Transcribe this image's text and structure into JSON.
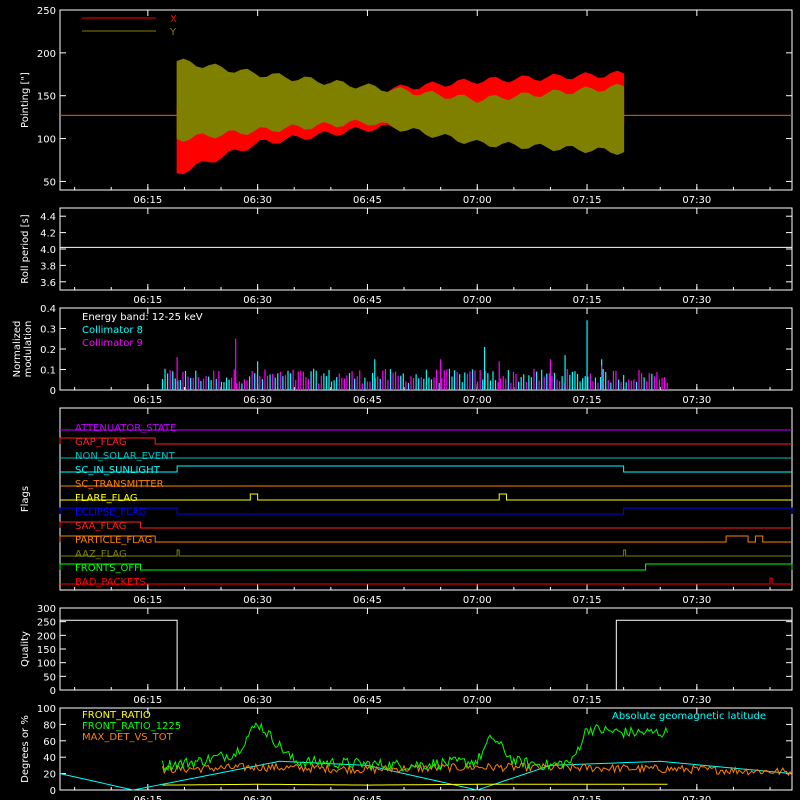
{
  "time_ticks": [
    "06:15",
    "06:30",
    "06:45",
    "07:00",
    "07:15",
    "07:30"
  ],
  "chart_data": [
    {
      "type": "line",
      "ylabel": "Pointing [\"]",
      "ylim": [
        40,
        250
      ],
      "yticks": [
        "50",
        "100",
        "150",
        "200",
        "250"
      ],
      "x_range": [
        "06:03",
        "07:43"
      ],
      "legend": {
        "placement": "top-left"
      },
      "series": [
        {
          "name": "X",
          "color": "#ff0000",
          "flat_level": 127,
          "oscillation_start": "06:19",
          "oscillation_end": "07:20",
          "envelope": {
            "x": [
              "06:19",
              "06:30",
              "06:45",
              "07:00",
              "07:20"
            ],
            "upper": [
              138,
              135,
              155,
              167,
              175
            ],
            "lower": [
              60,
              95,
              112,
              120,
              118
            ]
          }
        },
        {
          "name": "Y",
          "color": "#808000",
          "flat_level": 127,
          "oscillation_start": "06:19",
          "oscillation_end": "07:20",
          "envelope": {
            "x": [
              "06:19",
              "06:30",
              "06:45",
              "07:00",
              "07:20"
            ],
            "upper": [
              190,
              175,
              160,
              145,
              160
            ],
            "lower": [
              100,
              110,
              120,
              95,
              85
            ]
          }
        }
      ]
    },
    {
      "type": "line",
      "ylabel": "Roll period [s]",
      "ylim": [
        3.5,
        4.5
      ],
      "yticks": [
        "3.6",
        "3.8",
        "4.0",
        "4.2",
        "4.4"
      ],
      "series": [
        {
          "name": "",
          "color": "#ffffff",
          "x": [
            "06:03",
            "07:43"
          ],
          "values": [
            4.02,
            4.02
          ]
        }
      ]
    },
    {
      "type": "bar",
      "ylabel": "Normalized modulation",
      "ylim": [
        0,
        0.4
      ],
      "yticks": [
        "0",
        "0.1",
        "0.2",
        "0.3",
        "0.4"
      ],
      "x_range": [
        "06:17",
        "07:26"
      ],
      "typical_level": 0.08,
      "legend_title": "Energy band: 12-25 keV",
      "series": [
        {
          "name": "Collimator 8",
          "color": "#00ffff",
          "spikes": {
            "x": [
              "06:30",
              "06:46",
              "07:01",
              "07:12",
              "07:15",
              "07:17"
            ],
            "values": [
              0.14,
              0.15,
              0.21,
              0.17,
              0.34,
              0.15
            ]
          }
        },
        {
          "name": "Collimator 9",
          "color": "#ff00ff",
          "spikes": {
            "x": [
              "06:19",
              "06:27",
              "06:55",
              "07:03",
              "07:10",
              "07:17"
            ],
            "values": [
              0.16,
              0.25,
              0.15,
              0.14,
              0.15,
              0.12
            ]
          }
        }
      ]
    },
    {
      "type": "line",
      "ylabel": "Flags",
      "flags": [
        {
          "label": "ATTENUATOR_STATE",
          "color": "#c000ff",
          "high_intervals": []
        },
        {
          "label": "GAP_FLAG",
          "color": "#ff2020",
          "high_intervals": [
            [
              "06:03",
              "06:16"
            ]
          ]
        },
        {
          "label": "NON_SOLAR_EVENT",
          "color": "#00c0c0",
          "high_intervals": []
        },
        {
          "label": "SC_IN_SUNLIGHT",
          "color": "#00ffff",
          "high_intervals": [
            [
              "06:19",
              "07:20"
            ]
          ]
        },
        {
          "label": "SC_TRANSMITTER",
          "color": "#ff8000",
          "high_intervals": []
        },
        {
          "label": "FLARE_FLAG",
          "color": "#ffff00",
          "high_intervals": [
            [
              "06:29",
              "06:30"
            ],
            [
              "07:03",
              "07:04"
            ]
          ]
        },
        {
          "label": "ECLIPSE_FLAG",
          "color": "#0000ff",
          "high_intervals": [
            [
              "06:03",
              "06:19"
            ],
            [
              "07:20",
              "07:43"
            ]
          ]
        },
        {
          "label": "SAA_FLAG",
          "color": "#ff2020",
          "high_intervals": [
            [
              "06:03",
              "06:14"
            ]
          ]
        },
        {
          "label": "PARTICLE_FLAG",
          "color": "#ff8000",
          "high_intervals": [
            [
              "06:03",
              "06:16"
            ],
            [
              "07:34",
              "07:37"
            ],
            [
              "07:38",
              "07:39"
            ]
          ]
        },
        {
          "label": "AAZ_FLAG",
          "color": "#808000",
          "high_intervals": [
            [
              "06:19",
              "06:19"
            ],
            [
              "07:20",
              "07:20"
            ]
          ]
        },
        {
          "label": "FRONTS_OFF",
          "color": "#00ff00",
          "high_intervals": [
            [
              "06:03",
              "06:14"
            ],
            [
              "07:23",
              "07:43"
            ]
          ]
        },
        {
          "label": "BAD_PACKETS",
          "color": "#ff0000",
          "high_intervals": [
            [
              "07:40",
              "07:40"
            ]
          ]
        }
      ]
    },
    {
      "type": "line",
      "ylabel": "Quality",
      "ylim": [
        0,
        300
      ],
      "yticks": [
        "0",
        "50",
        "100",
        "150",
        "200",
        "250",
        "300"
      ],
      "series": [
        {
          "name": "",
          "color": "#ffffff",
          "x": [
            "06:03",
            "06:19",
            "06:19",
            "07:19",
            "07:19",
            "07:43"
          ],
          "values": [
            255,
            255,
            0,
            0,
            255,
            255
          ]
        }
      ]
    },
    {
      "type": "line",
      "ylabel": "Degrees or %",
      "ylim": [
        0,
        100
      ],
      "yticks": [
        "0",
        "20",
        "40",
        "60",
        "80",
        "100"
      ],
      "series": [
        {
          "name": "FRONT_RATIO",
          "color": "#ffff00",
          "x": [
            "06:17",
            "06:30",
            "06:45",
            "07:00",
            "07:15",
            "07:26"
          ],
          "values": [
            6,
            7,
            6,
            7,
            7,
            7
          ]
        },
        {
          "name": "FRONT_RATIO_1225",
          "color": "#00ff00",
          "x": [
            "06:17",
            "06:22",
            "06:27",
            "06:30",
            "06:35",
            "06:50",
            "07:00",
            "07:02",
            "07:05",
            "07:10",
            "07:13",
            "07:15",
            "07:20",
            "07:26"
          ],
          "values": [
            30,
            35,
            45,
            82,
            35,
            30,
            35,
            65,
            35,
            30,
            35,
            75,
            70,
            70
          ]
        },
        {
          "name": "MAX_DET_VS_TOT",
          "color": "#ff8000",
          "x": [
            "06:17",
            "06:30",
            "06:45",
            "07:00",
            "07:15",
            "07:30",
            "07:43"
          ],
          "values": [
            25,
            28,
            25,
            28,
            27,
            25,
            22
          ]
        },
        {
          "name": "Absolute geomagnetic latitude",
          "color": "#00ffff",
          "x": [
            "06:03",
            "06:13",
            "06:33",
            "06:45",
            "07:00",
            "07:10",
            "07:25",
            "07:43"
          ],
          "values": [
            20,
            0,
            35,
            30,
            0,
            30,
            35,
            20
          ]
        }
      ]
    }
  ]
}
